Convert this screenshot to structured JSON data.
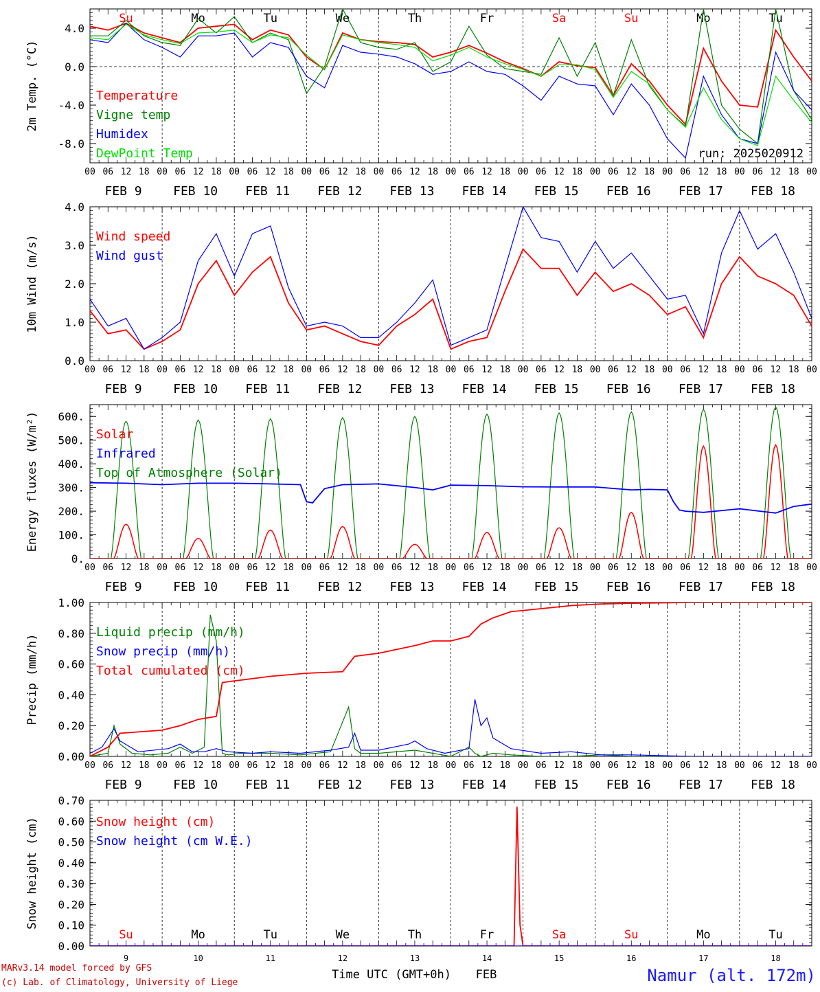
{
  "days": {
    "names": [
      "Su",
      "Mo",
      "Tu",
      "We",
      "Th",
      "Fr",
      "Sa",
      "Su",
      "Mo",
      "Tu"
    ],
    "weekend": [
      true,
      false,
      false,
      false,
      false,
      false,
      true,
      true,
      false,
      false
    ],
    "dates": [
      "FEB  9",
      "FEB 10",
      "FEB 11",
      "FEB 12",
      "FEB 13",
      "FEB 14",
      "FEB 15",
      "FEB 16",
      "FEB 17",
      "FEB 18"
    ],
    "numbers": [
      "9",
      "10",
      "11",
      "12",
      "13",
      "14",
      "15",
      "16",
      "17",
      "18"
    ],
    "hour_labels": [
      "00",
      "06",
      "12",
      "18"
    ],
    "end_label": "00"
  },
  "footer": {
    "credit_line1": "MARv3.14 model forced by GFS",
    "credit_line2": "(c) Lab. of Climatology, University of Liege",
    "time_label": "Time UTC (GMT+0h)",
    "month_label": "FEB",
    "station": "Namur (alt. 172m)"
  },
  "colors": {
    "red": "#ff0000",
    "green": "#008000",
    "blue": "#0000ff",
    "lightgreen": "#00e000",
    "navy": "#1a1aff"
  },
  "chart_data": [
    {
      "type": "line",
      "id": "temp",
      "ylabel": "2m Temp. (°C)",
      "ylim": [
        -10,
        6
      ],
      "yticks": [
        4,
        0,
        -4,
        -8
      ],
      "ytick_labels": [
        "4.0",
        "0.0",
        "-4.0",
        "-8.0"
      ],
      "zero_line": true,
      "run_label": "run: 2025020912",
      "x_unit": "hours since FEB 9 00 UTC",
      "series": [
        {
          "name": "Temperature",
          "color": "#ff0000",
          "x": [
            0,
            6,
            12,
            18,
            24,
            30,
            36,
            42,
            48,
            54,
            60,
            66,
            72,
            78,
            84,
            90,
            96,
            102,
            108,
            114,
            120,
            126,
            132,
            138,
            144,
            150,
            156,
            162,
            168,
            174,
            180,
            186,
            192,
            198,
            204,
            210,
            216,
            222,
            228,
            234,
            240
          ],
          "y": [
            4.2,
            3.8,
            4.5,
            3.5,
            3.0,
            2.5,
            4.0,
            4.2,
            4.4,
            2.8,
            3.8,
            3.3,
            1.0,
            -0.3,
            3.5,
            2.8,
            2.6,
            2.5,
            2.3,
            1.0,
            1.5,
            2.2,
            1.4,
            0.5,
            -0.2,
            -1.0,
            0.5,
            0.1,
            -0.1,
            -3.0,
            0.3,
            -1.5,
            -4.0,
            -6.0,
            1.9,
            -1.5,
            -4.0,
            -4.2,
            3.8,
            1.0,
            -1.5
          ]
        },
        {
          "name": "Vigne temp",
          "color": "#008000",
          "x": [
            0,
            6,
            12,
            18,
            24,
            30,
            36,
            42,
            48,
            54,
            60,
            66,
            72,
            78,
            84,
            90,
            96,
            102,
            108,
            114,
            120,
            126,
            132,
            138,
            144,
            150,
            156,
            162,
            168,
            174,
            180,
            186,
            192,
            198,
            204,
            210,
            216,
            222,
            228,
            234,
            240
          ],
          "y": [
            3.2,
            3.2,
            4.8,
            3.2,
            2.5,
            2.2,
            5.0,
            3.5,
            5.2,
            2.5,
            3.5,
            2.8,
            -2.8,
            0.0,
            6.0,
            2.5,
            2.0,
            1.8,
            2.5,
            -0.5,
            0.5,
            4.2,
            1.2,
            -0.2,
            -0.5,
            -0.8,
            3.0,
            -1.0,
            2.5,
            -3.0,
            2.8,
            -2.0,
            -4.5,
            -6.2,
            6.0,
            -4.0,
            -6.5,
            -8.0,
            6.0,
            -2.5,
            -5.5
          ]
        },
        {
          "name": "Humidex",
          "color": "#0000ff",
          "x": [
            0,
            6,
            12,
            18,
            24,
            30,
            36,
            42,
            48,
            54,
            60,
            66,
            72,
            78,
            84,
            90,
            96,
            102,
            108,
            114,
            120,
            126,
            132,
            138,
            144,
            150,
            156,
            162,
            168,
            174,
            180,
            186,
            192,
            198,
            204,
            210,
            216,
            222,
            228,
            234,
            240
          ],
          "y": [
            2.8,
            2.5,
            4.5,
            2.8,
            2.0,
            1.0,
            3.2,
            3.2,
            3.5,
            1.0,
            2.5,
            2.0,
            -1.0,
            -2.2,
            2.2,
            1.5,
            1.3,
            1.0,
            0.3,
            -0.8,
            -0.5,
            0.5,
            -0.5,
            -0.8,
            -2.0,
            -3.5,
            -1.0,
            -1.8,
            -2.0,
            -5.0,
            -1.8,
            -4.0,
            -7.5,
            -9.5,
            -1.0,
            -5.0,
            -7.5,
            -8.0,
            1.5,
            -2.5,
            -4.5
          ]
        },
        {
          "name": "DewPoint Temp",
          "color": "#00e000",
          "x": [
            0,
            6,
            12,
            18,
            24,
            30,
            36,
            42,
            48,
            54,
            60,
            66,
            72,
            78,
            84,
            90,
            96,
            102,
            108,
            114,
            120,
            126,
            132,
            138,
            144,
            150,
            156,
            162,
            168,
            174,
            180,
            186,
            192,
            198,
            204,
            210,
            216,
            222,
            228,
            234,
            240
          ],
          "y": [
            3.0,
            2.8,
            4.4,
            3.3,
            2.8,
            2.4,
            3.5,
            3.6,
            3.8,
            2.5,
            3.3,
            3.0,
            1.2,
            -0.3,
            3.3,
            2.8,
            2.5,
            2.3,
            2.0,
            0.6,
            1.2,
            2.0,
            1.0,
            0.3,
            -0.3,
            -1.0,
            0.2,
            0.2,
            -0.3,
            -3.2,
            -0.5,
            -1.8,
            -4.5,
            -6.3,
            -2.2,
            -5.5,
            -7.5,
            -8.2,
            -1.0,
            -3.5,
            -5.8
          ]
        }
      ]
    },
    {
      "type": "line",
      "id": "wind",
      "ylabel": "10m Wind (m/s)",
      "ylim": [
        0,
        4
      ],
      "yticks": [
        0,
        1,
        2,
        3,
        4
      ],
      "ytick_labels": [
        "0.0",
        "1.0",
        "2.0",
        "3.0",
        "4.0"
      ],
      "x_unit": "hours since FEB 9 00 UTC",
      "series": [
        {
          "name": "Wind speed",
          "color": "#ff0000",
          "x": [
            0,
            6,
            12,
            18,
            24,
            30,
            36,
            42,
            48,
            54,
            60,
            66,
            72,
            78,
            84,
            90,
            96,
            102,
            108,
            114,
            120,
            126,
            132,
            138,
            144,
            150,
            156,
            162,
            168,
            174,
            180,
            186,
            192,
            198,
            204,
            210,
            216,
            222,
            228,
            234,
            240
          ],
          "y": [
            1.3,
            0.7,
            0.8,
            0.3,
            0.5,
            0.8,
            2.0,
            2.6,
            1.7,
            2.3,
            2.7,
            1.5,
            0.8,
            0.9,
            0.7,
            0.5,
            0.4,
            0.9,
            1.2,
            1.6,
            0.3,
            0.5,
            0.6,
            1.8,
            2.9,
            2.4,
            2.4,
            1.7,
            2.3,
            1.8,
            2.0,
            1.7,
            1.2,
            1.4,
            0.6,
            2.0,
            2.7,
            2.2,
            2.0,
            1.7,
            0.9
          ]
        },
        {
          "name": "Wind gust",
          "color": "#0000ff",
          "x": [
            0,
            6,
            12,
            18,
            24,
            30,
            36,
            42,
            48,
            54,
            60,
            66,
            72,
            78,
            84,
            90,
            96,
            102,
            108,
            114,
            120,
            126,
            132,
            138,
            144,
            150,
            156,
            162,
            168,
            174,
            180,
            186,
            192,
            198,
            204,
            210,
            216,
            222,
            228,
            234,
            240
          ],
          "y": [
            1.6,
            0.9,
            1.1,
            0.3,
            0.6,
            1.0,
            2.6,
            3.3,
            2.2,
            3.3,
            3.5,
            1.9,
            0.9,
            1.0,
            0.9,
            0.6,
            0.6,
            1.0,
            1.5,
            2.1,
            0.4,
            0.6,
            0.8,
            2.4,
            4.0,
            3.2,
            3.1,
            2.3,
            3.1,
            2.4,
            2.8,
            2.2,
            1.6,
            1.7,
            0.7,
            2.8,
            3.9,
            2.9,
            3.3,
            2.3,
            1.1
          ]
        }
      ]
    },
    {
      "type": "line",
      "id": "energy",
      "ylabel": "Energy fluxes (W/m²)",
      "ylim": [
        0,
        650
      ],
      "yticks": [
        0,
        100,
        200,
        300,
        400,
        500,
        600
      ],
      "ytick_labels": [
        "0.",
        "100.",
        "200.",
        "300.",
        "400.",
        "500.",
        "600."
      ],
      "x_unit": "hours since FEB 9 00 UTC",
      "peak_energy": {
        "toa_solar": [
          580,
          585,
          590,
          595,
          600,
          610,
          615,
          620,
          630,
          640
        ],
        "surface_solar": [
          145,
          85,
          120,
          135,
          60,
          110,
          130,
          195,
          475,
          480
        ]
      },
      "series": [
        {
          "name": "Solar",
          "color": "#ff0000"
        },
        {
          "name": "Infrared",
          "color": "#0000ff",
          "x": [
            0,
            12,
            24,
            36,
            48,
            60,
            70,
            72,
            74,
            78,
            84,
            96,
            108,
            114,
            120,
            132,
            144,
            156,
            168,
            180,
            186,
            192,
            194,
            196,
            198,
            204,
            216,
            228,
            234,
            240
          ],
          "y": [
            320,
            318,
            312,
            318,
            318,
            315,
            312,
            240,
            235,
            295,
            312,
            315,
            300,
            290,
            310,
            308,
            303,
            302,
            302,
            290,
            292,
            290,
            240,
            205,
            200,
            195,
            210,
            192,
            220,
            230
          ]
        },
        {
          "name": "Top of Atmosphere (Solar)",
          "color": "#008000"
        }
      ]
    },
    {
      "type": "line",
      "id": "precip",
      "ylabel": "Precip (mm/h)",
      "ylim": [
        0,
        1
      ],
      "yticks": [
        0,
        0.2,
        0.4,
        0.6,
        0.8,
        1.0
      ],
      "ytick_labels": [
        "0.00",
        "0.20",
        "0.40",
        "0.60",
        "0.80",
        "1.00"
      ],
      "x_unit": "hours since FEB 9 00 UTC",
      "series": [
        {
          "name": "Liquid precip (mm/h)",
          "color": "#008000",
          "x": [
            0,
            6,
            8,
            10,
            14,
            20,
            26,
            30,
            34,
            38,
            40,
            42,
            44,
            46,
            50,
            60,
            70,
            80,
            86,
            88,
            90,
            96,
            108,
            114,
            120,
            126,
            128,
            130,
            134,
            140,
            150,
            160,
            170,
            180,
            200,
            240
          ],
          "y": [
            0,
            0.02,
            0.2,
            0.08,
            0.02,
            0.01,
            0.02,
            0.06,
            0.02,
            0.06,
            0.92,
            0.75,
            0.02,
            0.01,
            0.02,
            0.02,
            0.01,
            0.03,
            0.32,
            0.05,
            0.02,
            0.02,
            0.04,
            0.02,
            0.0,
            0.06,
            0.02,
            0.0,
            0.02,
            0.01,
            0.0,
            0.0,
            0.01,
            0.0,
            0.0,
            0.0
          ]
        },
        {
          "name": "Snow precip (mm/h)",
          "color": "#0000ff",
          "x": [
            0,
            4,
            8,
            10,
            16,
            26,
            30,
            34,
            38,
            42,
            46,
            54,
            60,
            70,
            80,
            86,
            88,
            90,
            96,
            106,
            108,
            112,
            118,
            126,
            128,
            130,
            132,
            134,
            140,
            150,
            160,
            170,
            180,
            200,
            240
          ],
          "y": [
            0.02,
            0.06,
            0.18,
            0.1,
            0.03,
            0.05,
            0.08,
            0.03,
            0.03,
            0.05,
            0.03,
            0.02,
            0.03,
            0.02,
            0.04,
            0.06,
            0.15,
            0.04,
            0.04,
            0.08,
            0.1,
            0.05,
            0.02,
            0.05,
            0.37,
            0.2,
            0.25,
            0.12,
            0.05,
            0.02,
            0.03,
            0.01,
            0.01,
            0.0,
            0.0
          ]
        },
        {
          "name": "Total cumulated (cm)",
          "color": "#ff0000",
          "x": [
            0,
            6,
            10,
            24,
            30,
            36,
            42,
            44,
            48,
            60,
            72,
            84,
            88,
            96,
            108,
            114,
            120,
            126,
            130,
            134,
            140,
            150,
            160,
            170,
            180,
            200,
            220,
            240
          ],
          "y": [
            0.0,
            0.06,
            0.15,
            0.17,
            0.2,
            0.24,
            0.26,
            0.48,
            0.49,
            0.52,
            0.54,
            0.55,
            0.65,
            0.67,
            0.72,
            0.75,
            0.75,
            0.78,
            0.86,
            0.9,
            0.94,
            0.96,
            0.98,
            0.99,
            0.995,
            1.0,
            1.0,
            1.0
          ]
        }
      ]
    },
    {
      "type": "line",
      "id": "snow",
      "ylabel": "Snow height (cm)",
      "ylim": [
        0,
        0.7
      ],
      "yticks": [
        0,
        0.1,
        0.2,
        0.3,
        0.4,
        0.5,
        0.6,
        0.7
      ],
      "ytick_labels": [
        "0.00",
        "0.10",
        "0.20",
        "0.30",
        "0.40",
        "0.50",
        "0.60",
        "0.70"
      ],
      "x_unit": "hours since FEB 9 00 UTC",
      "series": [
        {
          "name": "Snow height (cm)",
          "color": "#ff0000",
          "x": [
            0,
            141,
            142,
            143,
            144,
            240
          ],
          "y": [
            0,
            0,
            0.67,
            0.1,
            0,
            0
          ]
        },
        {
          "name": "Snow height (cm W.E.)",
          "color": "#0000ff",
          "x": [
            0,
            240
          ],
          "y": [
            0,
            0
          ]
        }
      ]
    }
  ]
}
